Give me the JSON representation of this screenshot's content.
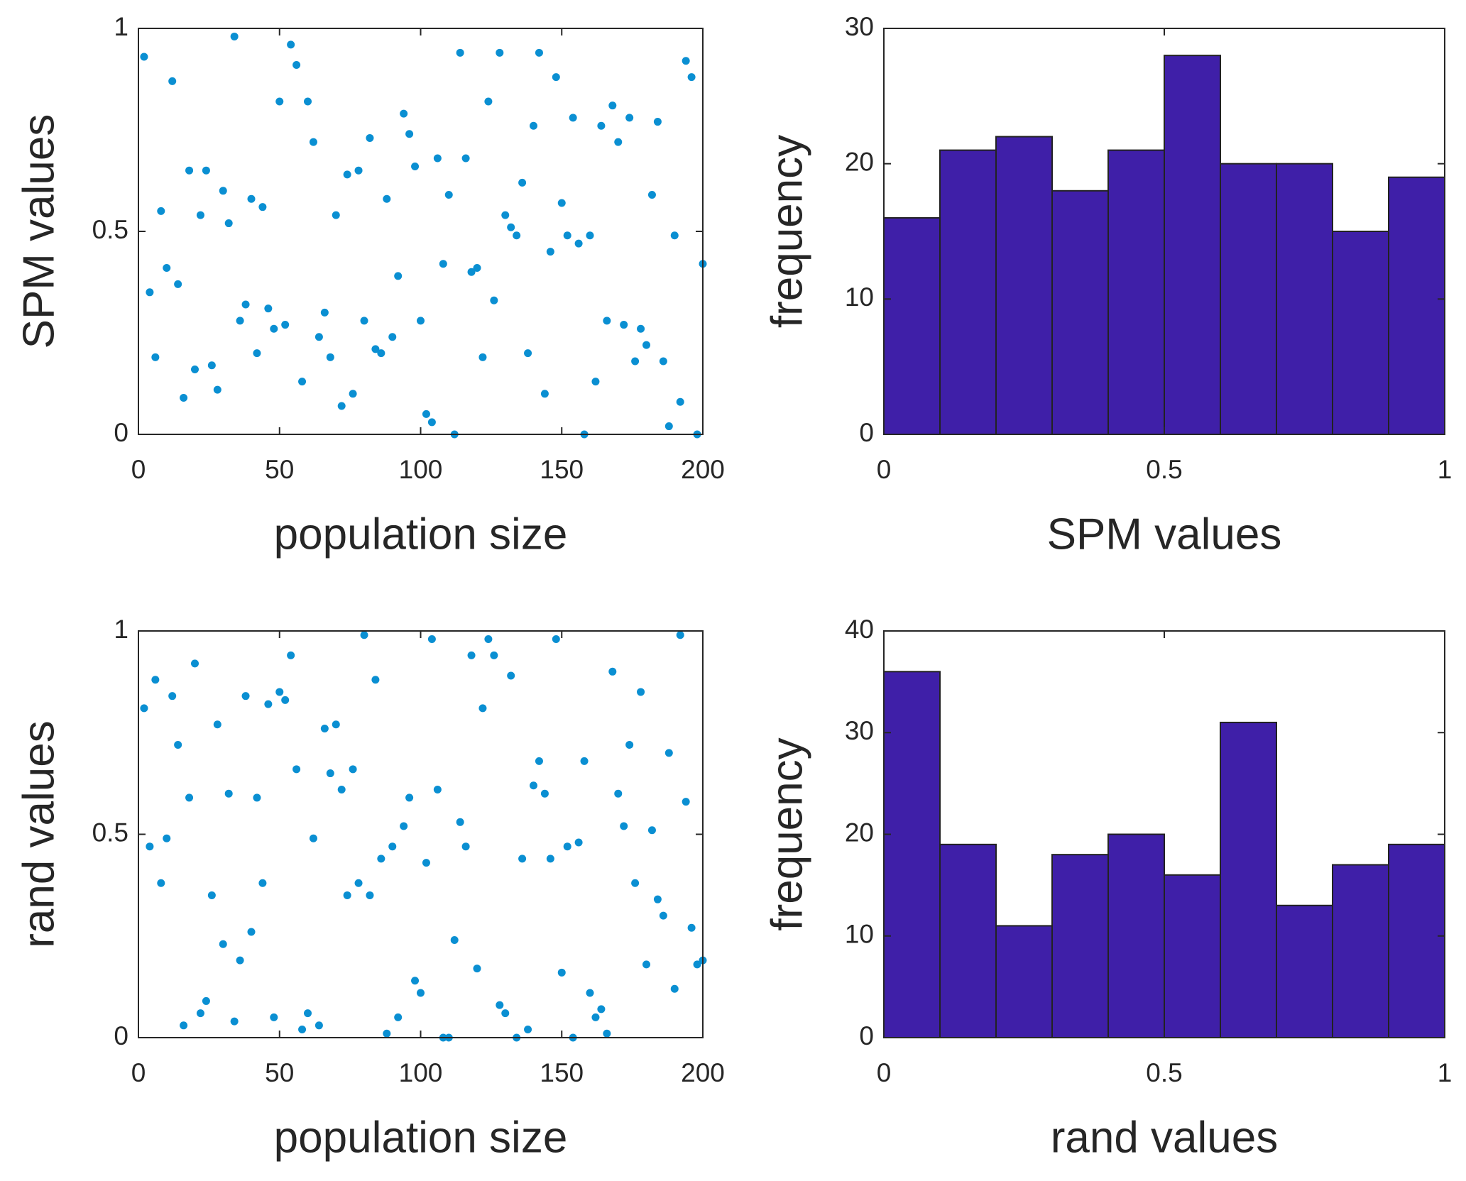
{
  "chart_data": [
    {
      "type": "scatter",
      "xlabel": "population size",
      "ylabel": "SPM values",
      "color": "#0a8fd2",
      "xlim": [
        0,
        200
      ],
      "xticks": [
        0,
        50,
        100,
        150,
        200
      ],
      "ylim": [
        0,
        1
      ],
      "yticks": [
        0,
        0.5,
        1
      ],
      "x": [
        2,
        4,
        6,
        8,
        10,
        12,
        14,
        16,
        18,
        20,
        22,
        24,
        26,
        28,
        30,
        32,
        34,
        36,
        38,
        40,
        42,
        44,
        46,
        48,
        50,
        52,
        54,
        56,
        58,
        60,
        62,
        64,
        66,
        68,
        70,
        72,
        74,
        76,
        78,
        80,
        82,
        84,
        86,
        88,
        90,
        92,
        94,
        96,
        98,
        100,
        102,
        104,
        106,
        108,
        110,
        112,
        114,
        116,
        118,
        120,
        122,
        124,
        126,
        128,
        130,
        132,
        134,
        136,
        138,
        140,
        142,
        144,
        146,
        148,
        150,
        152,
        154,
        156,
        158,
        160,
        162,
        164,
        166,
        168,
        170,
        172,
        174,
        176,
        178,
        180,
        182,
        184,
        186,
        188,
        190,
        192,
        194,
        196,
        198,
        200
      ],
      "values": [
        0.93,
        0.35,
        0.19,
        0.55,
        0.41,
        0.87,
        0.37,
        0.09,
        0.65,
        0.16,
        0.54,
        0.65,
        0.17,
        0.11,
        0.6,
        0.52,
        0.98,
        0.28,
        0.32,
        0.58,
        0.2,
        0.56,
        0.31,
        0.26,
        0.82,
        0.27,
        0.96,
        0.91,
        0.13,
        0.82,
        0.72,
        0.24,
        0.3,
        0.19,
        0.54,
        0.07,
        0.64,
        0.1,
        0.65,
        0.28,
        0.73,
        0.21,
        0.2,
        0.58,
        0.24,
        0.39,
        0.79,
        0.74,
        0.66,
        0.28,
        0.05,
        0.03,
        0.68,
        0.42,
        0.59,
        0,
        0.94,
        0.68,
        0.4,
        0.41,
        0.19,
        0.82,
        0.33,
        0.94,
        0.54,
        0.51,
        0.49,
        0.62,
        0.2,
        0.76,
        0.94,
        0.1,
        0.45,
        0.88,
        0.57,
        0.49,
        0.78,
        0.47,
        0,
        0.49,
        0.13,
        0.76,
        0.28,
        0.81,
        0.72,
        0.27,
        0.78,
        0.18,
        0.26,
        0.22,
        0.59,
        0.77,
        0.18,
        0.02,
        0.49,
        0.08,
        0.92,
        0.88,
        0,
        0.42
      ]
    },
    {
      "type": "histogram",
      "xlabel": "SPM values",
      "ylabel": "frequency",
      "color": "#3f1fa8",
      "edgecolor": "#222222",
      "bins": [
        0,
        0.1,
        0.2,
        0.3,
        0.4,
        0.5,
        0.6,
        0.7,
        0.8,
        0.9,
        1
      ],
      "values": [
        16,
        21,
        22,
        18,
        21,
        28,
        20,
        20,
        15,
        19
      ],
      "xlim": [
        0,
        1
      ],
      "xticks": [
        0,
        0.5,
        1
      ],
      "ylim": [
        0,
        30
      ],
      "yticks": [
        0,
        10,
        20,
        30
      ]
    },
    {
      "type": "scatter",
      "xlabel": "population size",
      "ylabel": "rand values",
      "color": "#0a8fd2",
      "xlim": [
        0,
        200
      ],
      "xticks": [
        0,
        50,
        100,
        150,
        200
      ],
      "ylim": [
        0,
        1
      ],
      "yticks": [
        0,
        0.5,
        1
      ],
      "x": [
        2,
        4,
        6,
        8,
        10,
        12,
        14,
        16,
        18,
        20,
        22,
        24,
        26,
        28,
        30,
        32,
        34,
        36,
        38,
        40,
        42,
        44,
        46,
        48,
        50,
        52,
        54,
        56,
        58,
        60,
        62,
        64,
        66,
        68,
        70,
        72,
        74,
        76,
        78,
        80,
        82,
        84,
        86,
        88,
        90,
        92,
        94,
        96,
        98,
        100,
        102,
        104,
        106,
        108,
        110,
        112,
        114,
        116,
        118,
        120,
        122,
        124,
        126,
        128,
        130,
        132,
        134,
        136,
        138,
        140,
        142,
        144,
        146,
        148,
        150,
        152,
        154,
        156,
        158,
        160,
        162,
        164,
        166,
        168,
        170,
        172,
        174,
        176,
        178,
        180,
        182,
        184,
        186,
        188,
        190,
        192,
        194,
        196,
        198,
        200
      ],
      "values": [
        0.81,
        0.47,
        0.88,
        0.38,
        0.49,
        0.84,
        0.72,
        0.03,
        0.59,
        0.92,
        0.06,
        0.09,
        0.35,
        0.77,
        0.23,
        0.6,
        0.04,
        0.19,
        0.84,
        0.26,
        0.59,
        0.38,
        0.82,
        0.05,
        0.85,
        0.83,
        0.94,
        0.66,
        0.02,
        0.06,
        0.49,
        0.03,
        0.76,
        0.65,
        0.77,
        0.61,
        0.35,
        0.66,
        0.38,
        0.99,
        0.35,
        0.88,
        0.44,
        0.01,
        0.47,
        0.05,
        0.52,
        0.59,
        0.14,
        0.11,
        0.43,
        0.98,
        0.61,
        0,
        0,
        0.24,
        0.53,
        0.47,
        0.94,
        0.17,
        0.81,
        0.98,
        0.94,
        0.08,
        0.06,
        0.89,
        0,
        0.44,
        0.02,
        0.62,
        0.68,
        0.6,
        0.44,
        0.98,
        0.16,
        0.47,
        0,
        0.48,
        0.68,
        0.11,
        0.05,
        0.07,
        0.01,
        0.9,
        0.6,
        0.52,
        0.72,
        0.38,
        0.85,
        0.18,
        0.51,
        0.34,
        0.3,
        0.7,
        0.12,
        0.99,
        0.58,
        0.27,
        0.18,
        0.19
      ]
    },
    {
      "type": "histogram",
      "xlabel": "rand values",
      "ylabel": "frequency",
      "color": "#3f1fa8",
      "edgecolor": "#222222",
      "bins": [
        0,
        0.1,
        0.2,
        0.3,
        0.4,
        0.5,
        0.6,
        0.7,
        0.8,
        0.9,
        1
      ],
      "values": [
        36,
        19,
        11,
        18,
        20,
        16,
        31,
        13,
        17,
        19
      ],
      "xlim": [
        0,
        1
      ],
      "xticks": [
        0,
        0.5,
        1
      ],
      "ylim": [
        0,
        40
      ],
      "yticks": [
        0,
        10,
        20,
        30,
        40
      ]
    }
  ]
}
